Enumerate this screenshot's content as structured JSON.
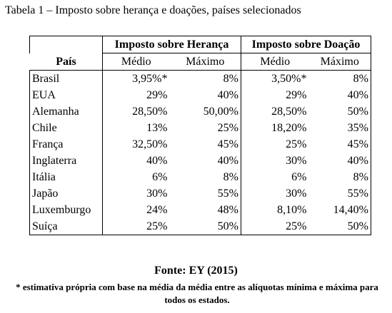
{
  "title": "Tabela 1 – Imposto sobre herança e doações, países selecionados",
  "table": {
    "row_header": "País",
    "groups": [
      "Imposto sobre Herança",
      "Imposto sobre Doação"
    ],
    "subheaders": [
      "Médio",
      "Máximo",
      "Médio",
      "Máximo"
    ],
    "rows": [
      [
        "Brasil",
        "3,95%*",
        "8%",
        "3,50%*",
        "8%"
      ],
      [
        "EUA",
        "29%",
        "40%",
        "29%",
        "40%"
      ],
      [
        "Alemanha",
        "28,50%",
        "50,00%",
        "28,50%",
        "50%"
      ],
      [
        "Chile",
        "13%",
        "25%",
        "18,20%",
        "35%"
      ],
      [
        "França",
        "32,50%",
        "45%",
        "25%",
        "45%"
      ],
      [
        "Inglaterra",
        "40%",
        "40%",
        "30%",
        "40%"
      ],
      [
        "Itália",
        "6%",
        "8%",
        "6%",
        "8%"
      ],
      [
        "Japão",
        "30%",
        "55%",
        "30%",
        "55%"
      ],
      [
        "Luxemburgo",
        "24%",
        "48%",
        "8,10%",
        "14,40%"
      ],
      [
        "Suíça",
        "25%",
        "50%",
        "25%",
        "50%"
      ]
    ]
  },
  "source": "Fonte: EY (2015)",
  "footnote": "* estimativa própria com base na média da média entre as alíquotas mínima e máxima  para todos os estados."
}
